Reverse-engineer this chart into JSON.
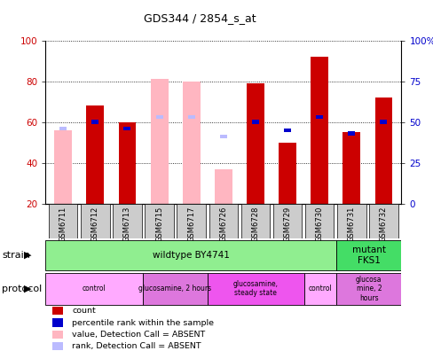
{
  "title": "GDS344 / 2854_s_at",
  "samples": [
    "GSM6711",
    "GSM6712",
    "GSM6713",
    "GSM6715",
    "GSM6717",
    "GSM6726",
    "GSM6728",
    "GSM6729",
    "GSM6730",
    "GSM6731",
    "GSM6732"
  ],
  "bar_values": [
    56,
    68,
    60,
    81,
    80,
    37,
    79,
    50,
    92,
    55,
    72
  ],
  "bar_absent": [
    true,
    false,
    false,
    true,
    true,
    true,
    false,
    false,
    false,
    false,
    false
  ],
  "rank_values": [
    46,
    50,
    46,
    53,
    53,
    41,
    50,
    45,
    53,
    43,
    50
  ],
  "rank_absent": [
    true,
    false,
    false,
    true,
    true,
    true,
    false,
    false,
    false,
    false,
    false
  ],
  "ylim_left": [
    20,
    100
  ],
  "ylim_right": [
    0,
    100
  ],
  "yticks_left": [
    20,
    40,
    60,
    80,
    100
  ],
  "ytick_labels_left": [
    "20",
    "40",
    "60",
    "80",
    "100"
  ],
  "yticks_right": [
    0,
    25,
    50,
    75,
    100
  ],
  "ytick_labels_right": [
    "0",
    "25",
    "50",
    "75",
    "100%"
  ],
  "strain_groups": [
    {
      "label": "wildtype BY4741",
      "start": 0,
      "end": 9,
      "color": "#90EE90"
    },
    {
      "label": "mutant\nFKS1",
      "start": 9,
      "end": 11,
      "color": "#44DD66"
    }
  ],
  "protocol_groups": [
    {
      "label": "control",
      "start": 0,
      "end": 3,
      "color": "#FFAAFF"
    },
    {
      "label": "glucosamine, 2 hours",
      "start": 3,
      "end": 5,
      "color": "#DD77DD"
    },
    {
      "label": "glucosamine,\nsteady state",
      "start": 5,
      "end": 8,
      "color": "#EE55EE"
    },
    {
      "label": "control",
      "start": 8,
      "end": 9,
      "color": "#FFAAFF"
    },
    {
      "label": "glucosa\nmine, 2\nhours",
      "start": 9,
      "end": 11,
      "color": "#DD77DD"
    }
  ],
  "absent_bar_color": "#FFB6C1",
  "present_bar_color": "#CC0000",
  "absent_rank_color": "#BBBBFF",
  "present_rank_color": "#0000CC",
  "tick_label_color_left": "#CC0000",
  "tick_label_color_right": "#0000CC"
}
